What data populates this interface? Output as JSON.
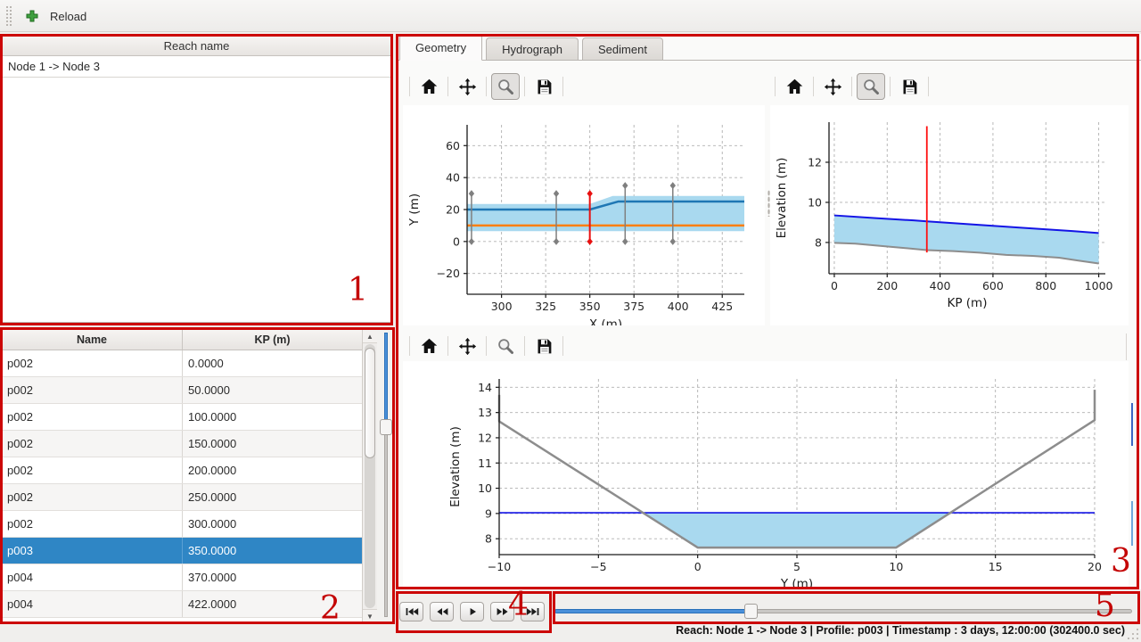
{
  "toolbar": {
    "reload_label": "Reload"
  },
  "reach_panel": {
    "header": "Reach name",
    "items": [
      "Node 1 -> Node 3"
    ]
  },
  "profile_table": {
    "columns": [
      "Name",
      "KP (m)"
    ],
    "rows": [
      [
        "p002",
        "0.0000"
      ],
      [
        "p002",
        "50.0000"
      ],
      [
        "p002",
        "100.0000"
      ],
      [
        "p002",
        "150.0000"
      ],
      [
        "p002",
        "200.0000"
      ],
      [
        "p002",
        "250.0000"
      ],
      [
        "p002",
        "300.0000"
      ],
      [
        "p003",
        "350.0000"
      ],
      [
        "p004",
        "370.0000"
      ],
      [
        "p004",
        "422.0000"
      ]
    ],
    "selected_row": 7
  },
  "tabs": [
    {
      "label": "Geometry",
      "active": true
    },
    {
      "label": "Hydrograph",
      "active": false
    },
    {
      "label": "Sediment",
      "active": false
    }
  ],
  "plot_toolbars": {
    "icons": [
      "home-icon",
      "pan-icon",
      "zoom-icon",
      "save-icon"
    ],
    "zoom_active": {
      "plan_view": true,
      "long_profile": true,
      "cross_section": false
    }
  },
  "playback": {
    "buttons": [
      "skip-to-start",
      "rewind",
      "play",
      "fast-forward",
      "skip-to-end"
    ]
  },
  "time_slider": {
    "value_pct": 34
  },
  "profile_slider": {
    "value_pct": 34
  },
  "status_bar": {
    "text": "Reach: Node 1 -> Node 3 | Profile: p003 | Timestamp : 3 days, 12:00:00 (302400.0 sec)"
  },
  "annotations": [
    {
      "label": "1"
    },
    {
      "label": "2"
    },
    {
      "label": "3"
    },
    {
      "label": "4"
    },
    {
      "label": "5"
    }
  ],
  "colors": {
    "selection_blue": "#2f86c5",
    "slider_blue": "#4a90d9",
    "annotation_red": "#cc0606",
    "band_blue": "#a9d9ef",
    "center_blue": "#1f77b4",
    "flow_orange": "#ff7f0e",
    "water_blue": "#1414e6",
    "bed_gray": "#8d8d8d",
    "marker_red": "#e81010"
  },
  "chart_data": [
    {
      "id": "plan-view",
      "type": "line",
      "xlabel": "X (m)",
      "ylabel": "Y (m)",
      "xlim": [
        280.5,
        437.5
      ],
      "ylim": [
        -33,
        73
      ],
      "xticks": [
        300,
        325,
        350,
        375,
        400,
        425
      ],
      "yticks": [
        -20,
        0,
        20,
        40,
        60
      ],
      "grid": true,
      "series": [
        {
          "name": "channel-band",
          "type": "fill",
          "color": "#a9d9ef",
          "upper": [
            [
              280.5,
              23.5
            ],
            [
              350,
              23.5
            ],
            [
              363,
              28.5
            ],
            [
              437.5,
              28.5
            ]
          ],
          "lower": [
            [
              280.5,
              6.5
            ],
            [
              437.5,
              6.5
            ]
          ]
        },
        {
          "name": "centerline",
          "type": "line",
          "color": "#1f77b4",
          "width": 2.5,
          "points": [
            [
              280.5,
              20
            ],
            [
              350,
              20
            ],
            [
              366,
              25
            ],
            [
              437.5,
              25
            ]
          ]
        },
        {
          "name": "flow-axis",
          "type": "line",
          "color": "#ff7f0e",
          "width": 2.5,
          "points": [
            [
              280.5,
              10
            ],
            [
              437.5,
              10
            ]
          ]
        },
        {
          "name": "profile-trace-283",
          "type": "vline",
          "x": 283,
          "y1": 0,
          "y2": 30,
          "color": "#7f7f7f",
          "width": 1.5,
          "markers": true
        },
        {
          "name": "profile-trace-331",
          "type": "vline",
          "x": 331,
          "y1": 0,
          "y2": 30,
          "color": "#7f7f7f",
          "width": 1.5,
          "markers": true
        },
        {
          "name": "profile-trace-350-selected",
          "type": "vline",
          "x": 350,
          "y1": 0,
          "y2": 30,
          "color": "#e81010",
          "width": 2,
          "markers": true
        },
        {
          "name": "profile-trace-370",
          "type": "vline",
          "x": 370,
          "y1": 0,
          "y2": 35,
          "color": "#7f7f7f",
          "width": 1.5,
          "markers": true
        },
        {
          "name": "profile-trace-397",
          "type": "vline",
          "x": 397,
          "y1": 0,
          "y2": 35,
          "color": "#7f7f7f",
          "width": 1.5,
          "markers": true
        }
      ]
    },
    {
      "id": "long-profile",
      "type": "line",
      "xlabel": "KP (m)",
      "ylabel": "Elevation (m)",
      "xlim": [
        -20,
        1025
      ],
      "ylim": [
        6.44,
        14.0
      ],
      "xticks": [
        0,
        200,
        400,
        600,
        800,
        1000
      ],
      "yticks": [
        8,
        10,
        12
      ],
      "grid": true,
      "series": [
        {
          "name": "water-area",
          "type": "fill",
          "color": "#a9d9ef",
          "upper": [
            [
              0,
              9.35
            ],
            [
              150,
              9.22
            ],
            [
              300,
              9.1
            ],
            [
              350,
              9.05
            ],
            [
              500,
              8.92
            ],
            [
              700,
              8.74
            ],
            [
              900,
              8.57
            ],
            [
              1000,
              8.47
            ]
          ],
          "lower": [
            [
              0,
              7.98
            ],
            [
              80,
              7.94
            ],
            [
              150,
              7.86
            ],
            [
              250,
              7.74
            ],
            [
              350,
              7.62
            ],
            [
              450,
              7.57
            ],
            [
              550,
              7.49
            ],
            [
              650,
              7.38
            ],
            [
              750,
              7.33
            ],
            [
              850,
              7.24
            ],
            [
              920,
              7.1
            ],
            [
              1000,
              6.95
            ]
          ]
        },
        {
          "name": "water-surface",
          "type": "line",
          "color": "#1414e6",
          "width": 2,
          "points": [
            [
              0,
              9.35
            ],
            [
              150,
              9.22
            ],
            [
              300,
              9.1
            ],
            [
              350,
              9.05
            ],
            [
              500,
              8.92
            ],
            [
              700,
              8.74
            ],
            [
              900,
              8.57
            ],
            [
              1000,
              8.47
            ]
          ]
        },
        {
          "name": "bed-level",
          "type": "line",
          "color": "#8d8d8d",
          "width": 2,
          "points": [
            [
              0,
              7.98
            ],
            [
              80,
              7.94
            ],
            [
              150,
              7.86
            ],
            [
              250,
              7.74
            ],
            [
              350,
              7.62
            ],
            [
              450,
              7.57
            ],
            [
              550,
              7.49
            ],
            [
              650,
              7.38
            ],
            [
              750,
              7.33
            ],
            [
              850,
              7.24
            ],
            [
              920,
              7.1
            ],
            [
              1000,
              6.95
            ]
          ]
        },
        {
          "name": "current-kp-marker",
          "type": "vline",
          "x": 350,
          "y1": 7.5,
          "y2": 13.8,
          "color": "#ff1010",
          "width": 1.8,
          "markers": false
        }
      ]
    },
    {
      "id": "cross-section",
      "type": "line",
      "xlabel": "Y (m)",
      "ylabel": "Elevation (m)",
      "xlim": [
        -10,
        20
      ],
      "ylim": [
        7.37,
        14.33
      ],
      "xticks": [
        -10,
        -5,
        0,
        5,
        10,
        15,
        20
      ],
      "yticks": [
        8,
        9,
        10,
        11,
        12,
        13,
        14
      ],
      "grid": true,
      "series": [
        {
          "name": "water-area",
          "type": "fill",
          "color": "#a9d9ef",
          "upper": [
            [
              -2.76,
              9.03
            ],
            [
              12.73,
              9.03
            ]
          ],
          "lower": [
            [
              -2.76,
              9.03
            ],
            [
              0,
              7.65
            ],
            [
              10,
              7.65
            ],
            [
              12.73,
              9.03
            ]
          ]
        },
        {
          "name": "water-level",
          "type": "line",
          "color": "#1414e6",
          "width": 1.6,
          "points": [
            [
              -10,
              9.03
            ],
            [
              20,
              9.03
            ]
          ]
        },
        {
          "name": "bed-profile",
          "type": "line",
          "color": "#8d8d8d",
          "width": 2.5,
          "points": [
            [
              -10,
              13.7
            ],
            [
              -10,
              12.65
            ],
            [
              0,
              7.65
            ],
            [
              10,
              7.65
            ],
            [
              20,
              12.7
            ],
            [
              20,
              13.9
            ]
          ]
        }
      ]
    }
  ]
}
